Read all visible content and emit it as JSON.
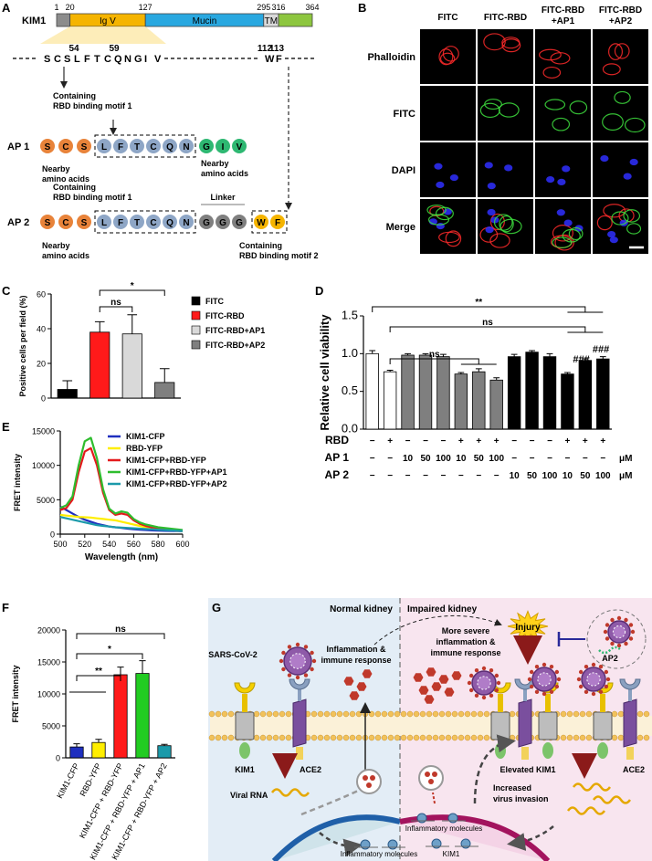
{
  "panel_labels": [
    "A",
    "B",
    "C",
    "D",
    "E",
    "F",
    "G"
  ],
  "panel_a": {
    "protein": "KIM1",
    "positions": [
      1,
      20,
      127,
      295,
      316,
      364
    ],
    "domains": [
      {
        "label": null,
        "color": "#8c8c8c"
      },
      {
        "label": "Ig V",
        "color": "#f5b400"
      },
      {
        "label": "Mucin",
        "color": "#29a8e0"
      },
      {
        "label": "TM",
        "color": "#d9d9d9"
      },
      {
        "label": null,
        "color": "#8dc63f"
      }
    ],
    "residue_numbers": [
      54,
      59,
      112,
      113
    ],
    "sequence": [
      {
        "letter": "S",
        "color": "#000000"
      },
      {
        "letter": "C",
        "color": "#000000"
      },
      {
        "letter": "S",
        "color": "#000000"
      },
      {
        "letter": "L",
        "color": "#e41a1c"
      },
      {
        "letter": "F",
        "color": "#e41a1c"
      },
      {
        "letter": "T",
        "color": "#000000"
      },
      {
        "letter": "C",
        "color": "#000000"
      },
      {
        "letter": "Q",
        "color": "#e41a1c"
      },
      {
        "letter": "N",
        "color": "#000000"
      },
      {
        "letter": "G",
        "color": "#000000"
      },
      {
        "letter": "I",
        "color": "#000000"
      },
      {
        "letter": "V",
        "color": "#000000"
      }
    ],
    "sequence_end": [
      {
        "letter": "W",
        "color": "#e41a1c"
      },
      {
        "letter": "F",
        "color": "#e41a1c"
      }
    ],
    "motif_note": [
      "Containing",
      "RBD binding motif 1"
    ],
    "ap1": {
      "label": "AP 1",
      "residues": [
        {
          "letter": "S",
          "color": "#e8833a"
        },
        {
          "letter": "C",
          "color": "#e8833a"
        },
        {
          "letter": "S",
          "color": "#e8833a"
        },
        {
          "letter": "L",
          "color": "#8ea6c6"
        },
        {
          "letter": "F",
          "color": "#8ea6c6"
        },
        {
          "letter": "T",
          "color": "#8ea6c6"
        },
        {
          "letter": "C",
          "color": "#8ea6c6"
        },
        {
          "letter": "Q",
          "color": "#8ea6c6"
        },
        {
          "letter": "N",
          "color": "#8ea6c6"
        },
        {
          "letter": "G",
          "color": "#2eb872"
        },
        {
          "letter": "I",
          "color": "#2eb872"
        },
        {
          "letter": "V",
          "color": "#2eb872"
        }
      ],
      "left_note": [
        "Nearby",
        "amino acids"
      ],
      "right_note": [
        "Nearby",
        "amino acids"
      ]
    },
    "motif_note_2": [
      "Containing",
      "RBD binding motif 1"
    ],
    "linker": "Linker",
    "ap2": {
      "label": "AP 2",
      "residues": [
        {
          "letter": "S",
          "color": "#e8833a"
        },
        {
          "letter": "C",
          "color": "#e8833a"
        },
        {
          "letter": "S",
          "color": "#e8833a"
        },
        {
          "letter": "L",
          "color": "#8ea6c6"
        },
        {
          "letter": "F",
          "color": "#8ea6c6"
        },
        {
          "letter": "T",
          "color": "#8ea6c6"
        },
        {
          "letter": "C",
          "color": "#8ea6c6"
        },
        {
          "letter": "Q",
          "color": "#8ea6c6"
        },
        {
          "letter": "N",
          "color": "#8ea6c6"
        },
        {
          "letter": "G",
          "color": "#7f7f7f"
        },
        {
          "letter": "G",
          "color": "#7f7f7f"
        },
        {
          "letter": "G",
          "color": "#7f7f7f"
        },
        {
          "letter": "W",
          "color": "#f5b400"
        },
        {
          "letter": "F",
          "color": "#f5b400"
        }
      ],
      "left_note": [
        "Nearby",
        "amino acids"
      ],
      "right_note": [
        "Containing",
        "RBD binding motif 2"
      ]
    }
  },
  "panel_b": {
    "columns": [
      [
        "FITC"
      ],
      [
        "FITC-RBD"
      ],
      [
        "FITC-RBD",
        "+AP1"
      ],
      [
        "FITC-RBD",
        "+AP2"
      ]
    ],
    "rows": [
      {
        "label": "Phalloidin",
        "color": "#e0201b",
        "stain": [
          "#ff2a2a"
        ]
      },
      {
        "label": "FITC",
        "color": "#22b022",
        "stain": [
          "#3ee03e"
        ]
      },
      {
        "label": "DAPI",
        "color": "#2020c0",
        "stain": [
          "#3030ff"
        ]
      },
      {
        "label": "Merge",
        "color": "#000000",
        "stain": [
          "#ff2a2a",
          "#3030ff",
          "#3ee03e"
        ]
      }
    ]
  },
  "chart_data": [
    {
      "type": "bar",
      "ylabel": "Positive cells per field (%)",
      "ylim": [
        0,
        60
      ],
      "yticks": [
        0,
        20,
        40,
        60
      ],
      "series": [
        {
          "name": "FITC",
          "color": "#000000",
          "values": [
            5
          ],
          "errors": [
            5
          ]
        },
        {
          "name": "FITC-RBD",
          "color": "#ff1a1a",
          "values": [
            38
          ],
          "errors": [
            6
          ]
        },
        {
          "name": "FITC-RBD+AP1",
          "color": "#d9d9d9",
          "values": [
            37
          ],
          "errors": [
            11
          ]
        },
        {
          "name": "FITC-RBD+AP2",
          "color": "#7f7f7f",
          "values": [
            9
          ],
          "errors": [
            8
          ]
        }
      ],
      "annotations": [
        "ns",
        "*"
      ]
    },
    {
      "type": "bar",
      "ylabel": "Relative cell viability",
      "ylim": [
        0,
        1.5
      ],
      "yticks": [
        {
          "value": 0,
          "label": "0.0"
        },
        {
          "value": 0.5,
          "label": "0.5"
        },
        {
          "value": 1,
          "label": "1.0"
        },
        {
          "value": 1.5,
          "label": "1.5"
        }
      ],
      "values": [
        1.0,
        0.76,
        0.98,
        0.98,
        0.96,
        0.73,
        0.76,
        0.65,
        0.96,
        1.02,
        0.96,
        0.73,
        0.91,
        0.93
      ],
      "errors": [
        0.04,
        0.02,
        0.02,
        0.02,
        0.03,
        0.02,
        0.04,
        0.03,
        0.03,
        0.02,
        0.04,
        0.02,
        0.02,
        0.03
      ],
      "colors": [
        "#ffffff",
        "#ffffff",
        "#7f7f7f",
        "#7f7f7f",
        "#7f7f7f",
        "#7f7f7f",
        "#7f7f7f",
        "#7f7f7f",
        "#000000",
        "#000000",
        "#000000",
        "#000000",
        "#000000",
        "#000000"
      ],
      "treatments": [
        {
          "label": "RBD",
          "cells": [
            "−",
            "+",
            "−",
            "−",
            "−",
            "+",
            "+",
            "+",
            "−",
            "−",
            "−",
            "+",
            "+",
            "+"
          ]
        },
        {
          "label": "AP 1",
          "cells": [
            "−",
            "−",
            "10",
            "50",
            "100",
            "10",
            "50",
            "100",
            "−",
            "−",
            "−",
            "−",
            "−",
            "−"
          ],
          "unit": "μM"
        },
        {
          "label": "AP 2",
          "cells": [
            "−",
            "−",
            "−",
            "−",
            "−",
            "−",
            "−",
            "−",
            "10",
            "50",
            "100",
            "10",
            "50",
            "100"
          ],
          "unit": "μM"
        }
      ],
      "annotations": [
        "**",
        "ns",
        "ns",
        "###",
        "###"
      ]
    },
    {
      "type": "line",
      "xlabel": "Wavelength (nm)",
      "ylabel": "FRET intensity",
      "x": [
        500,
        505,
        510,
        515,
        520,
        525,
        530,
        535,
        540,
        545,
        550,
        555,
        560,
        565,
        570,
        575,
        580,
        585,
        590,
        595,
        600
      ],
      "xlim": [
        500,
        600
      ],
      "xticks": [
        500,
        520,
        540,
        560,
        580,
        600
      ],
      "ylim": [
        0,
        15000
      ],
      "yticks": [
        0,
        5000,
        10000,
        15000
      ],
      "series": [
        {
          "name": "KIM1-CFP",
          "color": "#1f2fbf",
          "values": [
            4000,
            3500,
            3000,
            2500,
            2100,
            1800,
            1500,
            1300,
            1100,
            1000,
            900,
            800,
            700,
            650,
            600,
            550,
            500,
            480,
            460,
            440,
            420
          ]
        },
        {
          "name": "RBD-YFP",
          "color": "#ffee00",
          "values": [
            2800,
            2700,
            2600,
            2500,
            2450,
            2400,
            2300,
            2200,
            2100,
            2000,
            1800,
            1600,
            1400,
            1200,
            1000,
            900,
            800,
            700,
            600,
            500,
            450
          ]
        },
        {
          "name": "KIM1-CFP+RBD-YFP",
          "color": "#e41a1c",
          "values": [
            3500,
            3800,
            5000,
            9000,
            12000,
            12500,
            10000,
            6000,
            3500,
            2800,
            3000,
            2800,
            2000,
            1500,
            1200,
            1000,
            900,
            800,
            700,
            600,
            500
          ]
        },
        {
          "name": "KIM1-CFP+RBD-YFP+AP1",
          "color": "#2ebd2e",
          "values": [
            3800,
            4200,
            5500,
            10000,
            13500,
            14000,
            11000,
            6500,
            3700,
            3000,
            3300,
            3100,
            2200,
            1700,
            1400,
            1200,
            1000,
            900,
            800,
            700,
            600
          ]
        },
        {
          "name": "KIM1-CFP+RBD-YFP+AP2",
          "color": "#1b9aaa",
          "values": [
            2500,
            2300,
            2100,
            1900,
            1700,
            1500,
            1300,
            1200,
            1100,
            1000,
            950,
            900,
            850,
            800,
            750,
            700,
            650,
            600,
            550,
            500,
            450
          ]
        }
      ]
    },
    {
      "type": "bar",
      "ylabel": "FRET intensity",
      "categories": [
        "KIM1-CFP",
        "RBD-YFP",
        "KIM1-CFP + RBD-YFP",
        "KIM1-CFP + RBD-YFP + AP1",
        "KIM1-CFP + RBD-YFP + AP2"
      ],
      "values": [
        1700,
        2400,
        13000,
        13200,
        1900
      ],
      "errors": [
        500,
        500,
        1200,
        2000,
        200
      ],
      "colors": [
        "#1f2fbf",
        "#ffee00",
        "#ff1a1a",
        "#22cc22",
        "#1b9aaa"
      ],
      "ylim": [
        0,
        20000
      ],
      "yticks": [
        0,
        5000,
        10000,
        15000,
        20000
      ],
      "annotations": [
        "ns",
        "*",
        "**"
      ]
    }
  ],
  "panel_g": {
    "left_title": "Normal kidney",
    "right_title": "Impaired kidney",
    "virus": "SARS-CoV-2",
    "inflammation": [
      "Inflammation &",
      "immune response"
    ],
    "severe": [
      "More severe",
      "inflammation &",
      "immune response"
    ],
    "injury": "Injury",
    "drug": "AP2",
    "kim1_left": "KIM1",
    "ace2_left": "ACE2",
    "viral_rna": "Viral RNA",
    "elevated": "Elevated KIM1",
    "ace2_right": "ACE2",
    "invasion": [
      "Increased",
      "virus invasion"
    ],
    "molecules_left": "Inflammatory molecules",
    "molecules_right": "Inflammatory molecules",
    "kim1_gene": "KIM1"
  }
}
